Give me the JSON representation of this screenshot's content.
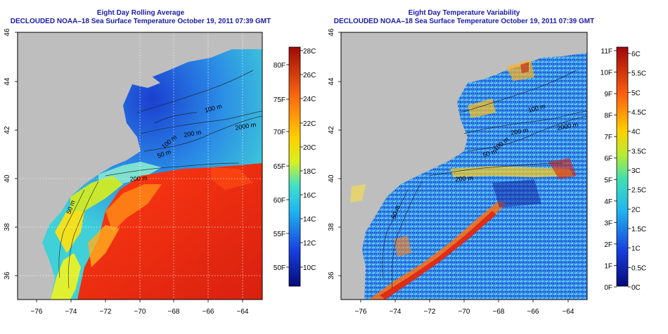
{
  "left_panel": {
    "title": "Eight Day Rolling Average",
    "subtitle": "DECLOUDED NOAA–18 Sea Surface Temperature October 19, 2011 07:39 GMT",
    "lat_labels": [
      "46",
      "44",
      "42",
      "40",
      "38",
      "36"
    ],
    "lon_labels": [
      "−76",
      "−74",
      "−72",
      "−70",
      "−68",
      "−66",
      "−64"
    ],
    "contour_labels": [
      "100 m",
      "2000 m",
      "200 m",
      "100 m",
      "50 m",
      "200 m",
      "50 m"
    ],
    "colorbar_c": [
      "28C",
      "26C",
      "24C",
      "22C",
      "20C",
      "18C",
      "16C",
      "14C",
      "12C",
      "10C"
    ],
    "colorbar_f": [
      "80F",
      "75F",
      "70F",
      "65F",
      "60F",
      "55F",
      "50F"
    ]
  },
  "right_panel": {
    "title": "Eight Day Temperature Variability",
    "subtitle": "DECLOUDED NOAA–18 Sea Surface Temperature October 19, 2011 07:39 GMT",
    "lat_labels": [
      "46",
      "44",
      "42",
      "40",
      "38",
      "36"
    ],
    "lon_labels": [
      "−76",
      "−74",
      "−72",
      "−70",
      "−68",
      "−66",
      "−64"
    ],
    "contour_labels": [
      "100 m",
      "2000 m",
      "200 m",
      "100 m",
      "50 m",
      "200 m",
      "50 m"
    ],
    "colorbar_f": [
      "11F",
      "10F",
      "9F",
      "8F",
      "7F",
      "6F",
      "5F",
      "4F",
      "3F",
      "2F",
      "1F",
      "0F"
    ],
    "colorbar_c": [
      "6C",
      "5.5C",
      "5C",
      "4.5C",
      "4C",
      "3.5C",
      "3C",
      "2.5C",
      "2C",
      "1.5C",
      "1C",
      "0.5C",
      "0C"
    ]
  },
  "colors": {
    "title": "#1a1aa8",
    "land": "#bebebe",
    "warm": "#d62410",
    "cold": "#1b3fd0"
  }
}
